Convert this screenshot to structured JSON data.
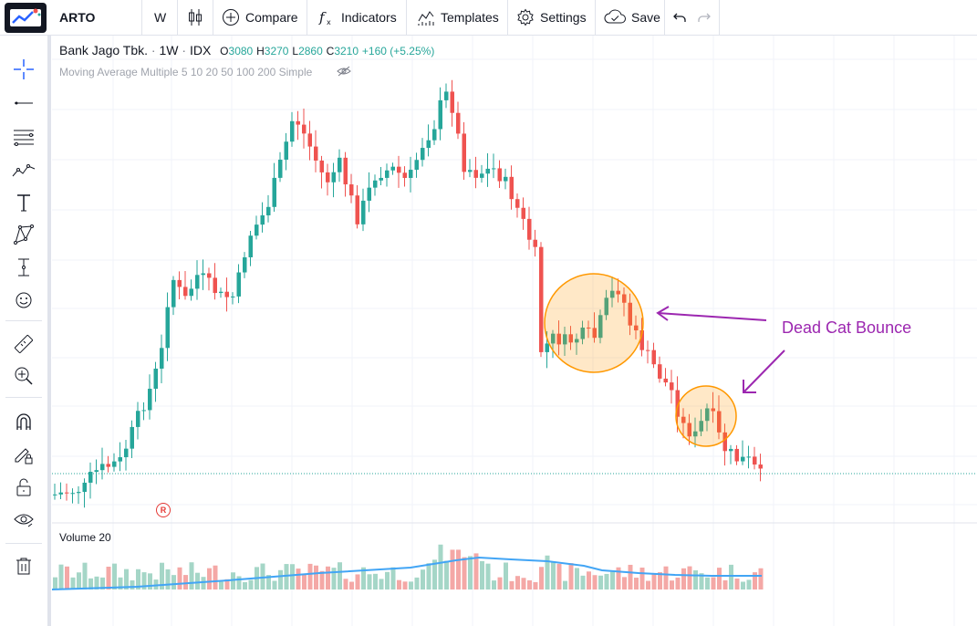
{
  "header": {
    "symbol": "ARTO",
    "interval": "W",
    "compare_label": "Compare",
    "indicators_label": "Indicators",
    "templates_label": "Templates",
    "settings_label": "Settings",
    "save_label": "Save"
  },
  "legend": {
    "name": "Bank Jago Tbk.",
    "interval": "1W",
    "exchange": "IDX",
    "o_label": "O",
    "o_value": "3080",
    "h_label": "H",
    "h_value": "3270",
    "l_label": "L",
    "l_value": "2860",
    "c_label": "C",
    "c_value": "3210",
    "change": "+160 (+5.25%)"
  },
  "indicator": {
    "ma_label": "Moving Average Multiple 5 10 20 50 100 200 Simple",
    "volume_label": "Volume 20"
  },
  "annotation": {
    "text": "Dead Cat Bounce"
  },
  "marker": {
    "label": "R"
  },
  "colors": {
    "up": "#26a69a",
    "down": "#ef5350",
    "annotation": "#9c27b0",
    "highlight": "#ff9800"
  },
  "icons": [
    "crosshair-icon",
    "trend-line-icon",
    "fib-icon",
    "pattern-icon",
    "text-icon",
    "xabcd-icon",
    "measure-icon",
    "emoji-icon",
    "ruler-icon",
    "zoom-icon",
    "magnet-icon",
    "lock-draw-icon",
    "lock-icon",
    "eye-icon",
    "trash-icon"
  ]
}
